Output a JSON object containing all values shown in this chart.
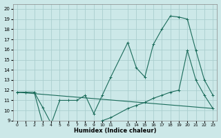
{
  "xlabel": "Humidex (Indice chaleur)",
  "background_color": "#cce8e8",
  "grid_color": "#aacece",
  "line_color": "#1a6b5a",
  "xlim": [
    -0.5,
    23.5
  ],
  "ylim": [
    9,
    20.5
  ],
  "xticks": [
    0,
    1,
    2,
    3,
    4,
    5,
    6,
    7,
    8,
    9,
    10,
    11,
    13,
    14,
    15,
    16,
    17,
    18,
    19,
    20,
    21,
    22,
    23
  ],
  "yticks": [
    9,
    10,
    11,
    12,
    13,
    14,
    15,
    16,
    17,
    18,
    19,
    20
  ],
  "line1_x": [
    0,
    1,
    2,
    3,
    4,
    5,
    6,
    7,
    8,
    9,
    10,
    11,
    13,
    14,
    15,
    16,
    17,
    18,
    19,
    20,
    21,
    22,
    23
  ],
  "line1_y": [
    11.8,
    11.8,
    11.8,
    10.3,
    8.7,
    11.0,
    11.0,
    11.0,
    11.5,
    9.7,
    11.5,
    13.3,
    16.7,
    14.2,
    13.3,
    16.5,
    18.0,
    19.3,
    19.2,
    19.0,
    15.9,
    13.0,
    11.5
  ],
  "line2_x": [
    0,
    1,
    2,
    3,
    4,
    5,
    6,
    7,
    8,
    9,
    10,
    11,
    13,
    14,
    15,
    16,
    17,
    18,
    19,
    20,
    21,
    22,
    23
  ],
  "line2_y": [
    11.8,
    11.8,
    11.8,
    8.7,
    8.7,
    8.7,
    8.7,
    8.7,
    8.7,
    8.7,
    9.0,
    9.3,
    10.2,
    10.5,
    10.8,
    11.2,
    11.5,
    11.8,
    12.0,
    15.9,
    13.0,
    11.5,
    10.2
  ],
  "line3_x": [
    0,
    23
  ],
  "line3_y": [
    11.8,
    10.2
  ]
}
